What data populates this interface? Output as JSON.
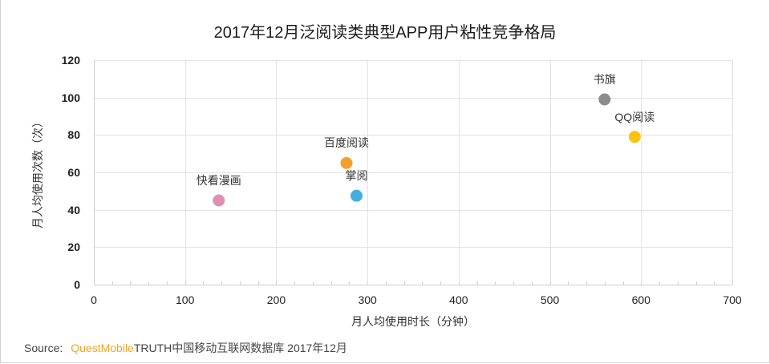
{
  "chart_data": {
    "type": "scatter",
    "title": "2017年12月泛阅读类典型APP用户粘性竞争格局",
    "xlabel": "月人均使用时长（分钟）",
    "ylabel": "月人均使用次数（次）",
    "xlim": [
      0,
      700
    ],
    "ylim": [
      0,
      120
    ],
    "x_ticks": [
      0,
      100,
      200,
      300,
      400,
      500,
      600,
      700
    ],
    "y_ticks": [
      0,
      20,
      40,
      60,
      80,
      100,
      120
    ],
    "grid": true,
    "legend": "none",
    "points": [
      {
        "name": "快看漫画",
        "x": 137,
        "y": 45,
        "color": "#e08fb4"
      },
      {
        "name": "百度阅读",
        "x": 277,
        "y": 65,
        "color": "#f5a02a"
      },
      {
        "name": "掌阅",
        "x": 288,
        "y": 47.5,
        "color": "#43afe0"
      },
      {
        "name": "书旗",
        "x": 560,
        "y": 99,
        "color": "#8c8c8c"
      },
      {
        "name": "QQ阅读",
        "x": 593,
        "y": 79,
        "color": "#ffc20e"
      }
    ]
  },
  "source": {
    "prefix": "Source:",
    "brand": "QuestMobile",
    "rest": "TRUTH中国移动互联网数据库 2017年12月"
  }
}
